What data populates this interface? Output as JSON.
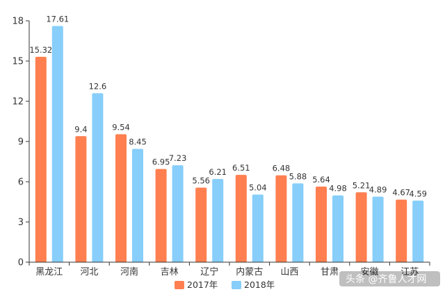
{
  "chart_data": {
    "type": "bar",
    "categories": [
      "黑龙江",
      "河北",
      "河南",
      "吉林",
      "辽宁",
      "内蒙古",
      "山西",
      "甘肃",
      "安徽",
      "江苏"
    ],
    "series": [
      {
        "name": "2017年",
        "color": "#FF7F50",
        "values": [
          15.32,
          9.4,
          9.54,
          6.95,
          5.56,
          6.51,
          6.48,
          5.64,
          5.21,
          4.67
        ]
      },
      {
        "name": "2018年",
        "color": "#87CEFA",
        "values": [
          17.61,
          12.6,
          8.45,
          7.23,
          6.21,
          5.04,
          5.88,
          4.98,
          4.89,
          4.59
        ]
      }
    ],
    "value_labels": [
      [
        "15.32",
        "9.4",
        "9.54",
        "6.95",
        "5.56",
        "6.51",
        "6.48",
        "5.64",
        "5.21",
        "4.67"
      ],
      [
        "17.61",
        "12.6",
        "8.45",
        "7.23",
        "6.21",
        "5.04",
        "5.88",
        "4.98",
        "4.89",
        "4.59"
      ]
    ],
    "yticks": [
      0,
      3,
      6,
      9,
      12,
      15,
      18
    ],
    "ylim": [
      0,
      18
    ],
    "legend_position": "bottom-center",
    "grid": false
  },
  "watermark": {
    "text": "头条 @齐鲁人才网",
    "icon": "toutiao-logo-icon"
  }
}
